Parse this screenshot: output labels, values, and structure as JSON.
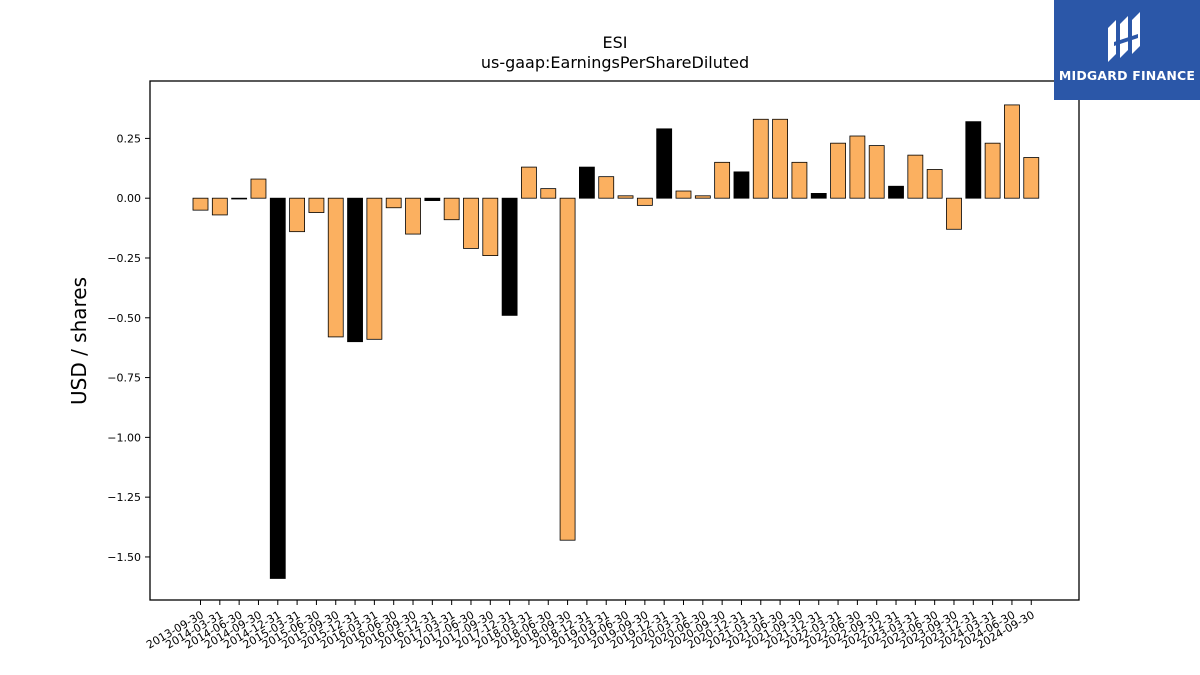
{
  "colors": {
    "bar_fy": "#000000",
    "bar_q": "#fbb060",
    "logo_bg": "#2b57a8"
  },
  "logo": {
    "text": "MIDGARD FINANCE",
    "icon": "midgard-logo-icon"
  },
  "chart_data": {
    "type": "bar",
    "title": "ESI",
    "subtitle": "us-gaap:EarningsPerShareDiluted",
    "xlabel": "",
    "ylabel": "USD / shares",
    "ylim": [
      -1.68,
      0.49
    ],
    "yticks": [
      0.25,
      0.0,
      -0.25,
      -0.5,
      -0.75,
      -1.0,
      -1.25,
      -1.5
    ],
    "ytick_labels": [
      "0.25",
      "0.00",
      "−0.25",
      "−0.50",
      "−0.75",
      "−1.00",
      "−1.25",
      "−1.50"
    ],
    "grid": false,
    "categories": [
      "2013-09-30",
      "2014-03-31",
      "2014-06-30",
      "2014-09-30",
      "2014-12-31",
      "2015-03-31",
      "2015-06-30",
      "2015-09-30",
      "2015-12-31",
      "2016-03-31",
      "2016-06-30",
      "2016-09-30",
      "2016-12-31",
      "2017-03-31",
      "2017-06-30",
      "2017-09-30",
      "2017-12-31",
      "2018-03-31",
      "2018-06-30",
      "2018-09-30",
      "2018-12-31",
      "2019-03-31",
      "2019-06-30",
      "2019-09-30",
      "2019-12-31",
      "2020-03-31",
      "2020-06-30",
      "2020-09-30",
      "2020-12-31",
      "2021-03-31",
      "2021-06-30",
      "2021-09-30",
      "2021-12-31",
      "2022-03-31",
      "2022-06-30",
      "2022-09-30",
      "2022-12-31",
      "2023-03-31",
      "2023-06-30",
      "2023-09-30",
      "2023-12-31",
      "2024-03-31",
      "2024-06-30",
      "2024-09-30"
    ],
    "values": [
      -0.05,
      -0.07,
      0.0,
      0.08,
      -1.59,
      -0.14,
      -0.06,
      -0.58,
      -0.6,
      -0.59,
      -0.04,
      -0.15,
      -0.01,
      -0.09,
      -0.21,
      -0.24,
      -0.49,
      0.13,
      0.04,
      -1.43,
      0.13,
      0.09,
      0.01,
      -0.03,
      0.29,
      0.03,
      0.01,
      0.15,
      0.11,
      0.33,
      0.33,
      0.15,
      0.02,
      0.23,
      0.26,
      0.22,
      0.05,
      0.18,
      0.12,
      -0.13,
      0.32,
      0.23,
      0.39,
      0.17
    ],
    "annual": [
      false,
      false,
      false,
      false,
      true,
      false,
      false,
      false,
      true,
      false,
      false,
      false,
      true,
      false,
      false,
      false,
      true,
      false,
      false,
      false,
      true,
      false,
      false,
      false,
      true,
      false,
      false,
      false,
      true,
      false,
      false,
      false,
      true,
      false,
      false,
      false,
      true,
      false,
      false,
      false,
      true,
      false,
      false,
      false
    ]
  }
}
